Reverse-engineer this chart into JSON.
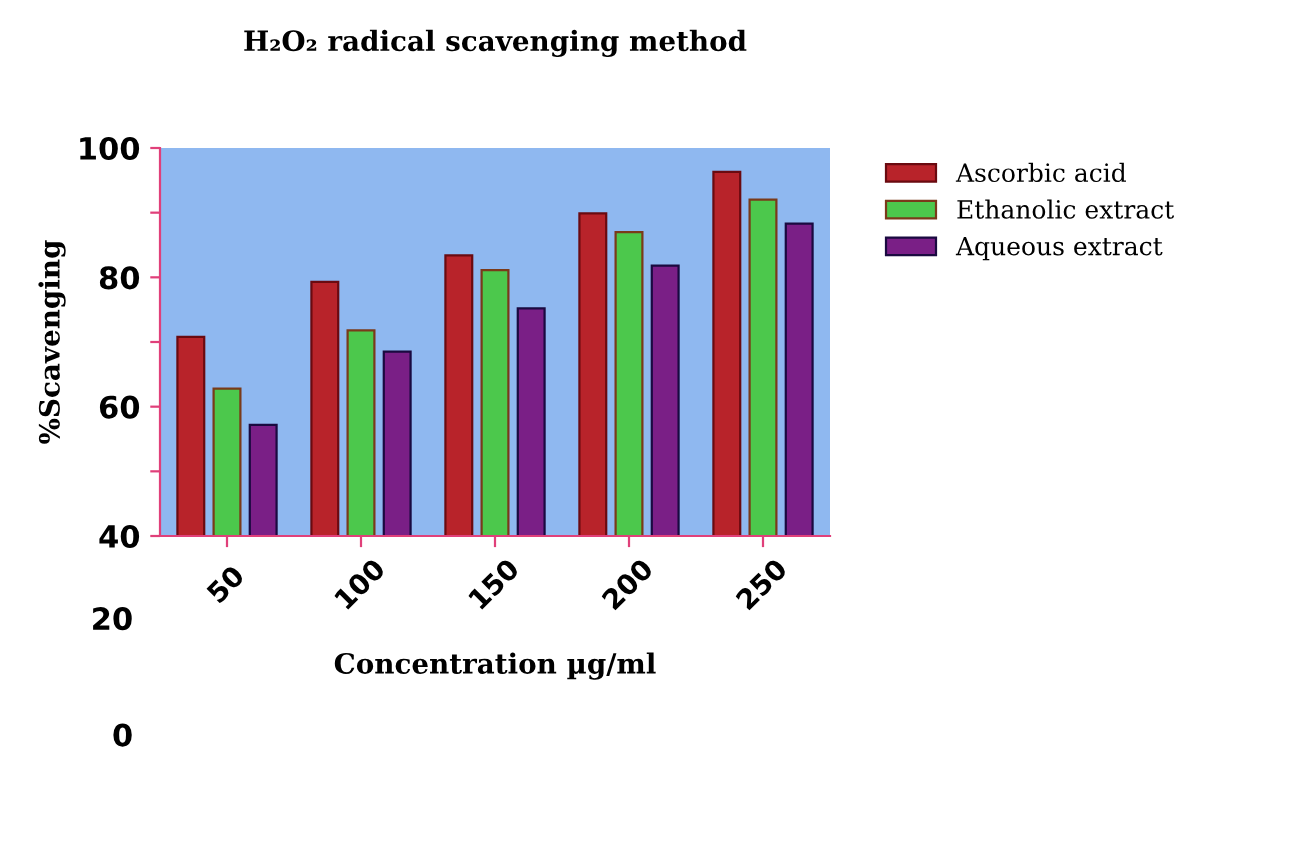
{
  "chart_data": {
    "type": "bar",
    "title": "H₂O₂ radical scavenging method",
    "xlabel": "Concentration µg/ml",
    "ylabel": "%Scavenging",
    "categories": [
      "50",
      "100",
      "150",
      "200",
      "250"
    ],
    "series": [
      {
        "name": "Ascorbic acid",
        "color": "#b8232a",
        "values": [
          70.8,
          79.3,
          83.4,
          89.9,
          96.3
        ]
      },
      {
        "name": "Ethanolic extract",
        "color": "#4cc84c",
        "values": [
          62.8,
          71.8,
          81.1,
          87,
          92
        ]
      },
      {
        "name": "Aqueous extract",
        "color": "#7a1f86",
        "values": [
          57.2,
          68.5,
          75.2,
          81.8,
          88.3
        ]
      }
    ],
    "ylim": [
      40,
      100
    ],
    "yticks": [
      100,
      {
        "value": 90,
        "label": null
      },
      80,
      {
        "value": 70,
        "label": null
      },
      60,
      {
        "value": 50,
        "label": null
      },
      40
    ],
    "annotations": [
      "20",
      "0"
    ],
    "grid": false,
    "legend": "right"
  }
}
